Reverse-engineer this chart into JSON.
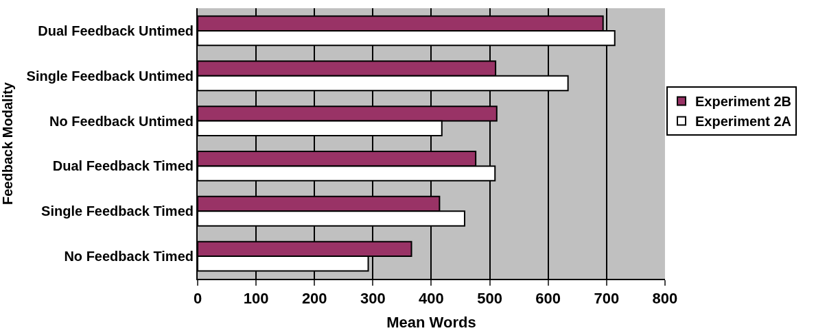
{
  "chart_data": {
    "type": "bar",
    "orientation": "horizontal",
    "xlabel": "Mean Words",
    "ylabel": "Feedback Modality",
    "categories": [
      "Dual Feedback Untimed",
      "Single Feedback Untimed",
      "No Feedback Untimed",
      "Dual Feedback Timed",
      "Single Feedback Timed",
      "No Feedback Timed"
    ],
    "series": [
      {
        "name": "Experiment 2B",
        "color": "#993366",
        "values": [
          694,
          510,
          512,
          476,
          414,
          366
        ]
      },
      {
        "name": "Experiment 2A",
        "color": "#ffffff",
        "values": [
          714,
          634,
          418,
          509,
          457,
          292
        ]
      }
    ],
    "xlim": [
      0,
      800
    ],
    "xticks": [
      0,
      100,
      200,
      300,
      400,
      500,
      600,
      700,
      800
    ],
    "grid": "x",
    "legend": "right"
  }
}
